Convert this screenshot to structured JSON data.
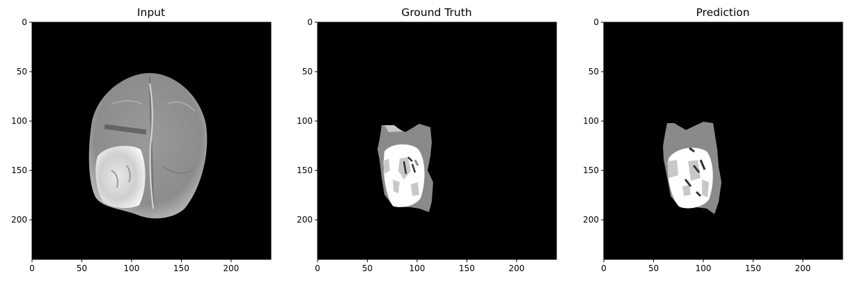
{
  "chart_data": [
    {
      "type": "image",
      "title": "Input",
      "content": "grayscale axial brain MRI slice with bright tumor region in lower-left",
      "xlim": [
        0,
        240
      ],
      "ylim": [
        240,
        0
      ],
      "xticks": [
        0,
        50,
        100,
        150,
        200
      ],
      "yticks": [
        0,
        50,
        100,
        150,
        200
      ],
      "xlabel": "",
      "ylabel": ""
    },
    {
      "type": "image",
      "title": "Ground Truth",
      "content": "tumor segmentation mask (gray edema, white core, light-gray enhancing regions)",
      "xlim": [
        0,
        240
      ],
      "ylim": [
        240,
        0
      ],
      "xticks": [
        0,
        50,
        100,
        150,
        200
      ],
      "yticks": [
        0,
        50,
        100,
        150,
        200
      ],
      "xlabel": "",
      "ylabel": ""
    },
    {
      "type": "image",
      "title": "Prediction",
      "content": "predicted tumor segmentation mask",
      "xlim": [
        0,
        240
      ],
      "ylim": [
        240,
        0
      ],
      "xticks": [
        0,
        50,
        100,
        150,
        200
      ],
      "yticks": [
        0,
        50,
        100,
        150,
        200
      ],
      "xlabel": "",
      "ylabel": ""
    }
  ],
  "colors": {
    "background": "#000000",
    "edema": "#8a8a8a",
    "enhancing": "#c8c8c8",
    "core": "#ffffff"
  }
}
